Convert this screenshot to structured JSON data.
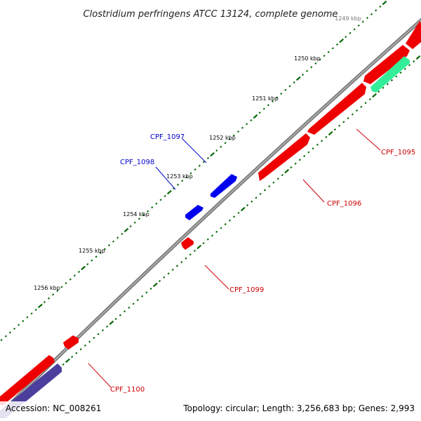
{
  "title": "Clostridium perfringens ATCC 13124, complete genome",
  "footer": {
    "accession": "Accession: NC_008261",
    "info": "Topology: circular; Length: 3,256,683 bp; Genes: 2,993"
  },
  "tick_labels": [
    "1250 kbp",
    "1251 kbp",
    "1252 kbp",
    "1253 kbp",
    "1254 kbp",
    "1255 kbp",
    "1256 kbp"
  ],
  "genes": [
    {
      "label": "CPF_1095",
      "strand": "reverse",
      "color": "#cc0000"
    },
    {
      "label": "CPF_1096",
      "strand": "reverse",
      "color": "#cc0000"
    },
    {
      "label": "CPF_1097",
      "strand": "forward",
      "color": "#0000cc"
    },
    {
      "label": "CPF_1098",
      "strand": "forward",
      "color": "#0000cc"
    },
    {
      "label": "CPF_1099",
      "strand": "reverse",
      "color": "#cc0000"
    },
    {
      "label": "CPF_1100",
      "strand": "reverse",
      "color": "#cc0000"
    }
  ],
  "colors": {
    "backbone": "#7a7a7a",
    "forward_cds": "#0000ff",
    "reverse_cds": "#ff0000",
    "rna_feature": "#33ee99",
    "other_feature": "#4a3f9c",
    "ticks": "#006600"
  }
}
